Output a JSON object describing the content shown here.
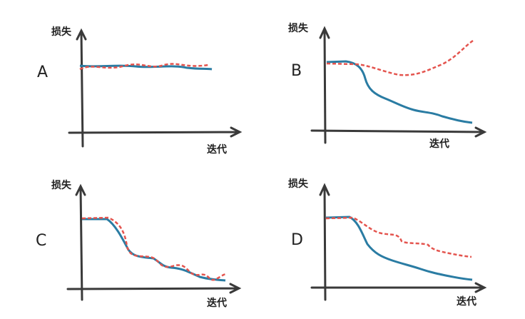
{
  "panels": [
    {
      "label": "A",
      "y_label": "损失",
      "x_label": "迭代"
    },
    {
      "label": "B",
      "y_label": "损失",
      "x_label": "迭代"
    },
    {
      "label": "C",
      "y_label": "损失",
      "x_label": "迭代"
    },
    {
      "label": "D",
      "y_label": "损失",
      "x_label": "迭代"
    }
  ]
}
